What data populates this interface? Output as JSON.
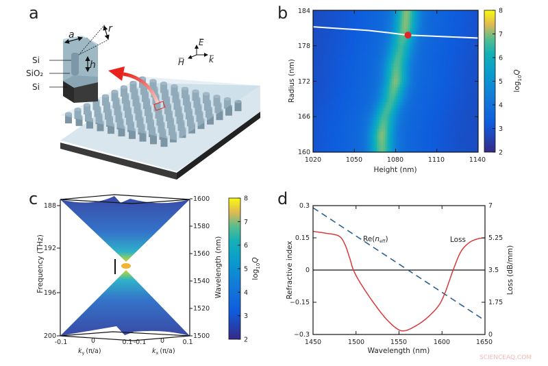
{
  "panels": {
    "a": "a",
    "b": "b",
    "c": "c",
    "d": "d"
  },
  "illustration": {
    "labels": {
      "a": "a",
      "r": "r",
      "h": "h",
      "si_top": "Si",
      "sio2": "SiO₂",
      "si_bottom": "Si",
      "E": "E",
      "H": "H",
      "k": "k"
    },
    "colors": {
      "cladding": "#a9c9d8",
      "pillar": "#7a93a3",
      "substrate": "#2b2b2b",
      "arrow": "#e8231e"
    }
  },
  "watermark": "SCIENCEAQ.COM",
  "chart_data": [
    {
      "id": "b",
      "type": "heatmap",
      "xlabel": "Height (nm)",
      "ylabel": "Radius (nm)",
      "xlim": [
        1020,
        1140
      ],
      "ylim": [
        160,
        184
      ],
      "xticks": [
        "1020",
        "1050",
        "1080",
        "1110",
        "1140"
      ],
      "yticks": [
        "160",
        "166",
        "172",
        "178",
        "184"
      ],
      "colorbar": {
        "label_main": "log",
        "label_sub": "10",
        "label_var": "Q",
        "range": [
          2,
          8
        ],
        "ticks": [
          "2",
          "3",
          "4",
          "5",
          "6",
          "7",
          "8"
        ],
        "colormap": "parula"
      },
      "ridge": {
        "radius_nm": [
          160,
          163,
          166,
          169,
          172,
          175,
          178,
          181,
          184
        ],
        "peak_height_nm": [
          1070,
          1070,
          1072,
          1077,
          1080,
          1081,
          1084,
          1087,
          1088
        ],
        "peak_log10Q": [
          6.8,
          7.0,
          6.6,
          6.6,
          7.0,
          6.7,
          6.5,
          7.0,
          7.0
        ],
        "background_log10Q": 3.0
      },
      "white_line": {
        "height_nm": [
          1020,
          1040,
          1060,
          1075,
          1089,
          1110,
          1140
        ],
        "radius_nm": [
          181.2,
          180.9,
          180.6,
          180.2,
          179.8,
          179.6,
          179.3
        ]
      },
      "marker": {
        "height_nm": 1089,
        "radius_nm": 179.8,
        "color": "#e32424"
      }
    },
    {
      "id": "c",
      "type": "surface",
      "left_axis": {
        "label": "Frequency (THz)",
        "ticks": [
          "188",
          "192",
          "196",
          "200"
        ]
      },
      "right_axis": {
        "label": "Wavelength (nm)",
        "ticks": [
          "1600",
          "1580",
          "1560",
          "1540",
          "1520",
          "1500"
        ]
      },
      "ky_axis": {
        "label_var": "k",
        "label_sub": "y",
        "label_unit": "(π/a)",
        "ticks": [
          "-0.1",
          "0",
          "0.1"
        ]
      },
      "kx_axis": {
        "label_var": "k",
        "label_sub": "x",
        "label_unit": "(π/a)",
        "ticks": [
          "-0.1",
          "0",
          "0.1"
        ]
      },
      "colorbar": {
        "label_main": "log",
        "label_sub": "10",
        "label_var": "Q",
        "range": [
          2,
          8
        ],
        "ticks": [
          "2",
          "3",
          "4",
          "5",
          "6",
          "7",
          "8"
        ],
        "colormap": "parula"
      }
    },
    {
      "id": "d",
      "type": "line",
      "xlabel": "Wavelength (nm)",
      "ylabel": "Refractive index",
      "y2label": "Loss (dB/mm)",
      "xlim": [
        1450,
        1650
      ],
      "ylim": [
        -0.3,
        0.3
      ],
      "y2lim": [
        0,
        7
      ],
      "xticks": [
        "1450",
        "1500",
        "1550",
        "1600",
        "1650"
      ],
      "yticks": [
        "0.3",
        "0.15",
        "0",
        "−0.15",
        "−0.3"
      ],
      "y2ticks": [
        "7",
        "5.25",
        "3.5",
        "1.75",
        "0"
      ],
      "series": [
        {
          "name": "Re(n_eff)",
          "label_pre": "Re(",
          "label_var": "n",
          "label_sub": "eff",
          "label_post": ")",
          "axis": "left",
          "style": "dashed",
          "color": "#2b5f8e",
          "x": [
            1450,
            1650
          ],
          "y": [
            0.29,
            -0.235
          ]
        },
        {
          "name": "Loss",
          "label": "Loss",
          "axis": "right",
          "style": "solid",
          "color": "#d8383a",
          "x": [
            1450,
            1465,
            1480,
            1487,
            1493,
            1497,
            1505,
            1520,
            1535,
            1548,
            1556,
            1565,
            1580,
            1595,
            1603,
            1613,
            1622,
            1632,
            1642,
            1650
          ],
          "y": [
            5.6,
            5.5,
            5.35,
            4.9,
            4.1,
            3.5,
            2.8,
            1.75,
            0.85,
            0.3,
            0.2,
            0.35,
            0.8,
            1.5,
            2.2,
            3.5,
            4.5,
            5.0,
            5.2,
            5.25
          ]
        }
      ]
    }
  ]
}
